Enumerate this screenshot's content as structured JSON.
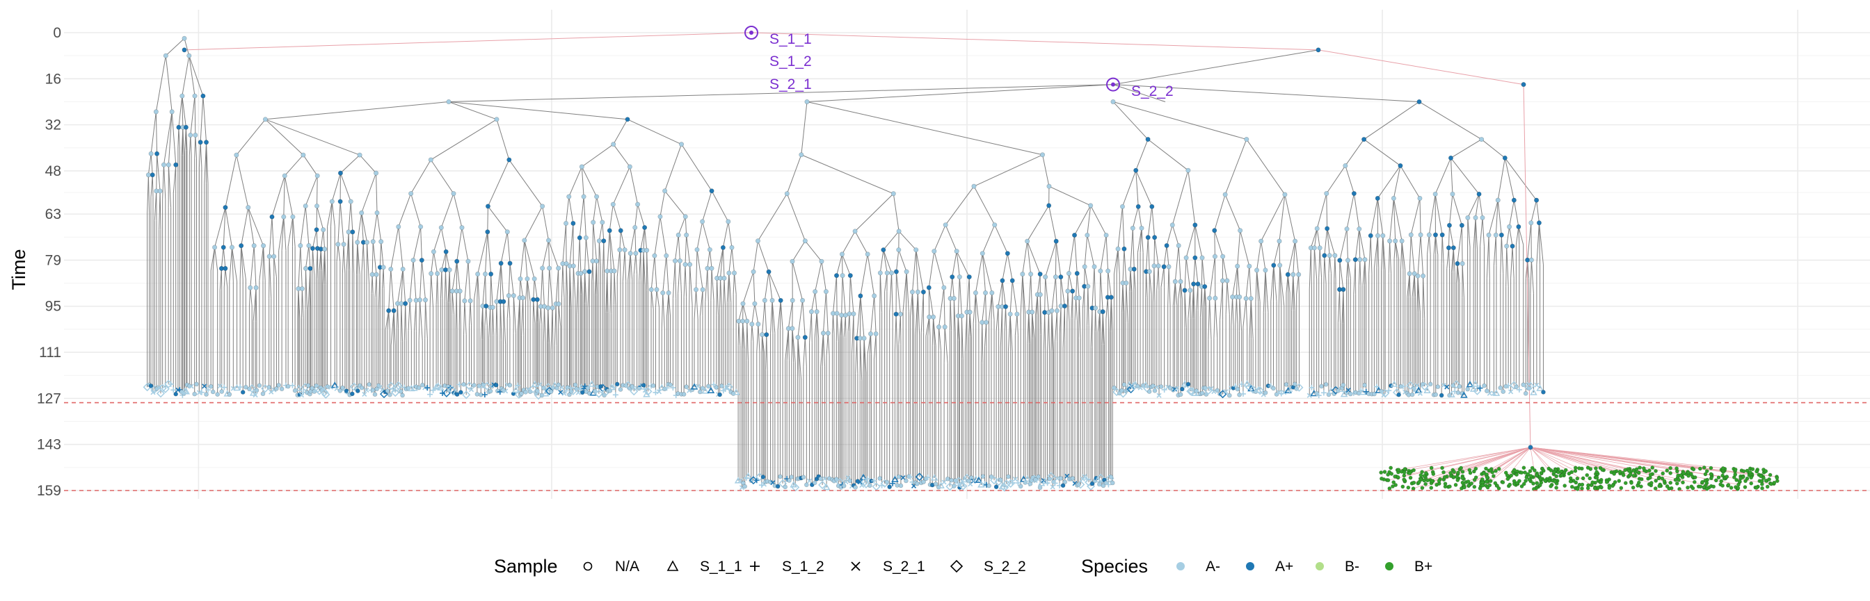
{
  "chart_data": {
    "type": "tree",
    "ylabel": "Time",
    "y_reversed": true,
    "ylim": [
      0,
      159
    ],
    "y_ticks": [
      "0",
      "16",
      "32",
      "48",
      "63",
      "79",
      "95",
      "111",
      "127",
      "143",
      "159"
    ],
    "grid": true,
    "reference_lines": [
      {
        "y": 128.5,
        "color": "#e06666",
        "style": "dashed"
      },
      {
        "y": 159,
        "color": "#e06666",
        "style": "dashed"
      }
    ],
    "annotations": [
      {
        "label": "S_1_1",
        "x": 0.5,
        "y": 0
      },
      {
        "label": "S_1_2",
        "x": 0.5,
        "y": 0
      },
      {
        "label": "S_2_1",
        "x": 0.5,
        "y": 0
      },
      {
        "label": "S_2_2",
        "x": 0.73,
        "y": 18
      }
    ],
    "legend": {
      "position": "bottom",
      "sample": {
        "title": "Sample",
        "items": [
          {
            "label": "N/A",
            "shape": "circle"
          },
          {
            "label": "S_1_1",
            "shape": "triangle"
          },
          {
            "label": "S_1_2",
            "shape": "plus"
          },
          {
            "label": "S_2_1",
            "shape": "cross"
          },
          {
            "label": "S_2_2",
            "shape": "diamond"
          }
        ]
      },
      "species": {
        "title": "Species",
        "items": [
          {
            "label": "A-",
            "color": "#a6cee3"
          },
          {
            "label": "A+",
            "color": "#1f78b4"
          },
          {
            "label": "B-",
            "color": "#b2df8a"
          },
          {
            "label": "B+",
            "color": "#33a02c"
          }
        ]
      }
    }
  },
  "colors": {
    "grid": "#ebebeb",
    "edge": "#7f7f7f",
    "edge_to_b": "#e8a0a8",
    "ref_line": "#e06666",
    "annotation": "#7b2fd0"
  }
}
